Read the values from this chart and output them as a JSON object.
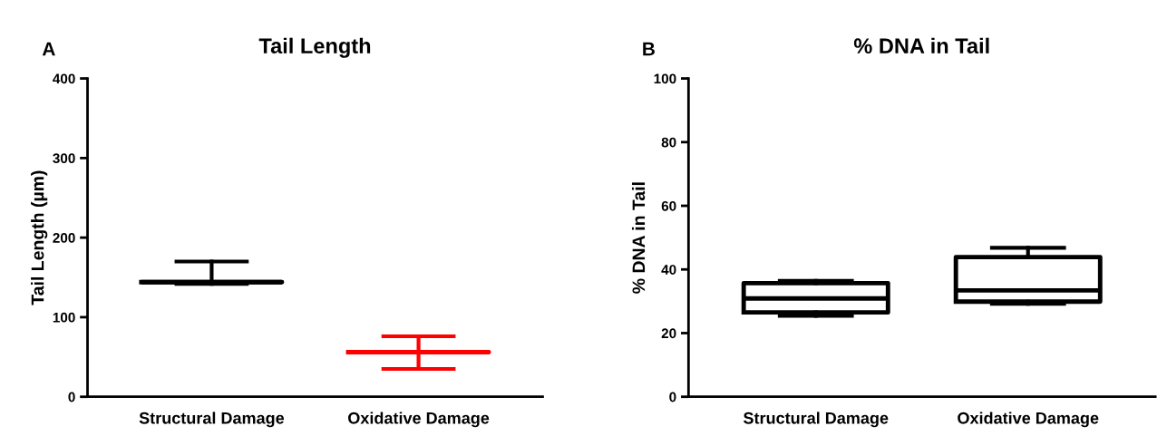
{
  "chart_data": [
    {
      "type": "box",
      "title": "Tail Length",
      "ylabel": "Tail Length (µm)",
      "annotations": [
        "A"
      ],
      "categories": [
        "Structural Damage",
        "Oxidative Damage"
      ],
      "boxes": [
        {
          "low": 142,
          "q1": 144,
          "median": 144,
          "q3": 144,
          "high": 170
        },
        {
          "low": 35,
          "q1": 56,
          "median": 56,
          "q3": 56,
          "high": 76
        }
      ],
      "colors": [
        "#000000",
        "#ff0000"
      ],
      "ylim": [
        0,
        400
      ],
      "yticks": [
        0,
        100,
        200,
        300,
        400
      ],
      "grid": false,
      "legend": false
    },
    {
      "type": "box",
      "title": "% DNA in Tail",
      "ylabel": "% DNA in Tail",
      "annotations": [
        "B"
      ],
      "categories": [
        "Structural Damage",
        "Oxidative Damage"
      ],
      "boxes": [
        {
          "low": 25.4,
          "q1": 26.5,
          "median": 30.9,
          "q3": 35.7,
          "high": 36.4
        },
        {
          "low": 29.2,
          "q1": 29.9,
          "median": 33.4,
          "q3": 43.9,
          "high": 46.8
        }
      ],
      "colors": [
        "#000000",
        "#000000"
      ],
      "ylim": [
        0,
        100
      ],
      "yticks": [
        0,
        20,
        40,
        60,
        80,
        100
      ],
      "grid": false,
      "legend": false
    }
  ]
}
